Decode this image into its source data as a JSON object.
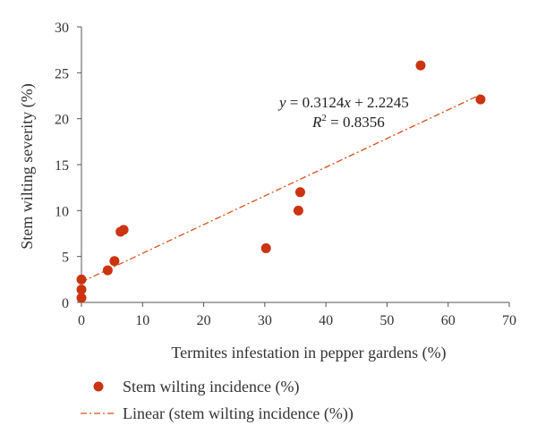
{
  "chart_data": {
    "type": "scatter",
    "xlabel": "Termites infestation in pepper gardens (%)",
    "ylabel": "Stem wilting severity (%)",
    "xlim": [
      0,
      70
    ],
    "ylim": [
      0,
      30
    ],
    "x_ticks": [
      0,
      10,
      20,
      30,
      40,
      50,
      60,
      70
    ],
    "y_ticks": [
      0,
      5,
      10,
      15,
      20,
      25,
      30
    ],
    "grid": false,
    "legend_position": "bottom",
    "series": [
      {
        "name": "Stem wilting incidence (%)",
        "type": "scatter",
        "color": "#cc3311",
        "points": [
          {
            "x": 0,
            "y": 2.5
          },
          {
            "x": 0,
            "y": 1.4
          },
          {
            "x": 0,
            "y": 0.5
          },
          {
            "x": 4.3,
            "y": 3.5
          },
          {
            "x": 5.4,
            "y": 4.5
          },
          {
            "x": 6.4,
            "y": 7.7
          },
          {
            "x": 6.9,
            "y": 7.9
          },
          {
            "x": 30.2,
            "y": 5.9
          },
          {
            "x": 35.5,
            "y": 10.0
          },
          {
            "x": 35.8,
            "y": 12.0
          },
          {
            "x": 55.5,
            "y": 25.8
          },
          {
            "x": 65.3,
            "y": 22.1
          }
        ]
      },
      {
        "name": "Linear (stem wilting incidence (%))",
        "type": "trendline",
        "color": "#d9531e",
        "slope": 0.3124,
        "intercept": 2.2245,
        "x_range": [
          0,
          65.3
        ]
      }
    ],
    "annotations": {
      "equation_prefix": "y",
      "equation_middle": " = 0.3124",
      "equation_x": "x",
      "equation_suffix": " + 2.2245",
      "r2_label": "R",
      "r2_power": "2",
      "r2_value": " = 0.8356"
    }
  }
}
